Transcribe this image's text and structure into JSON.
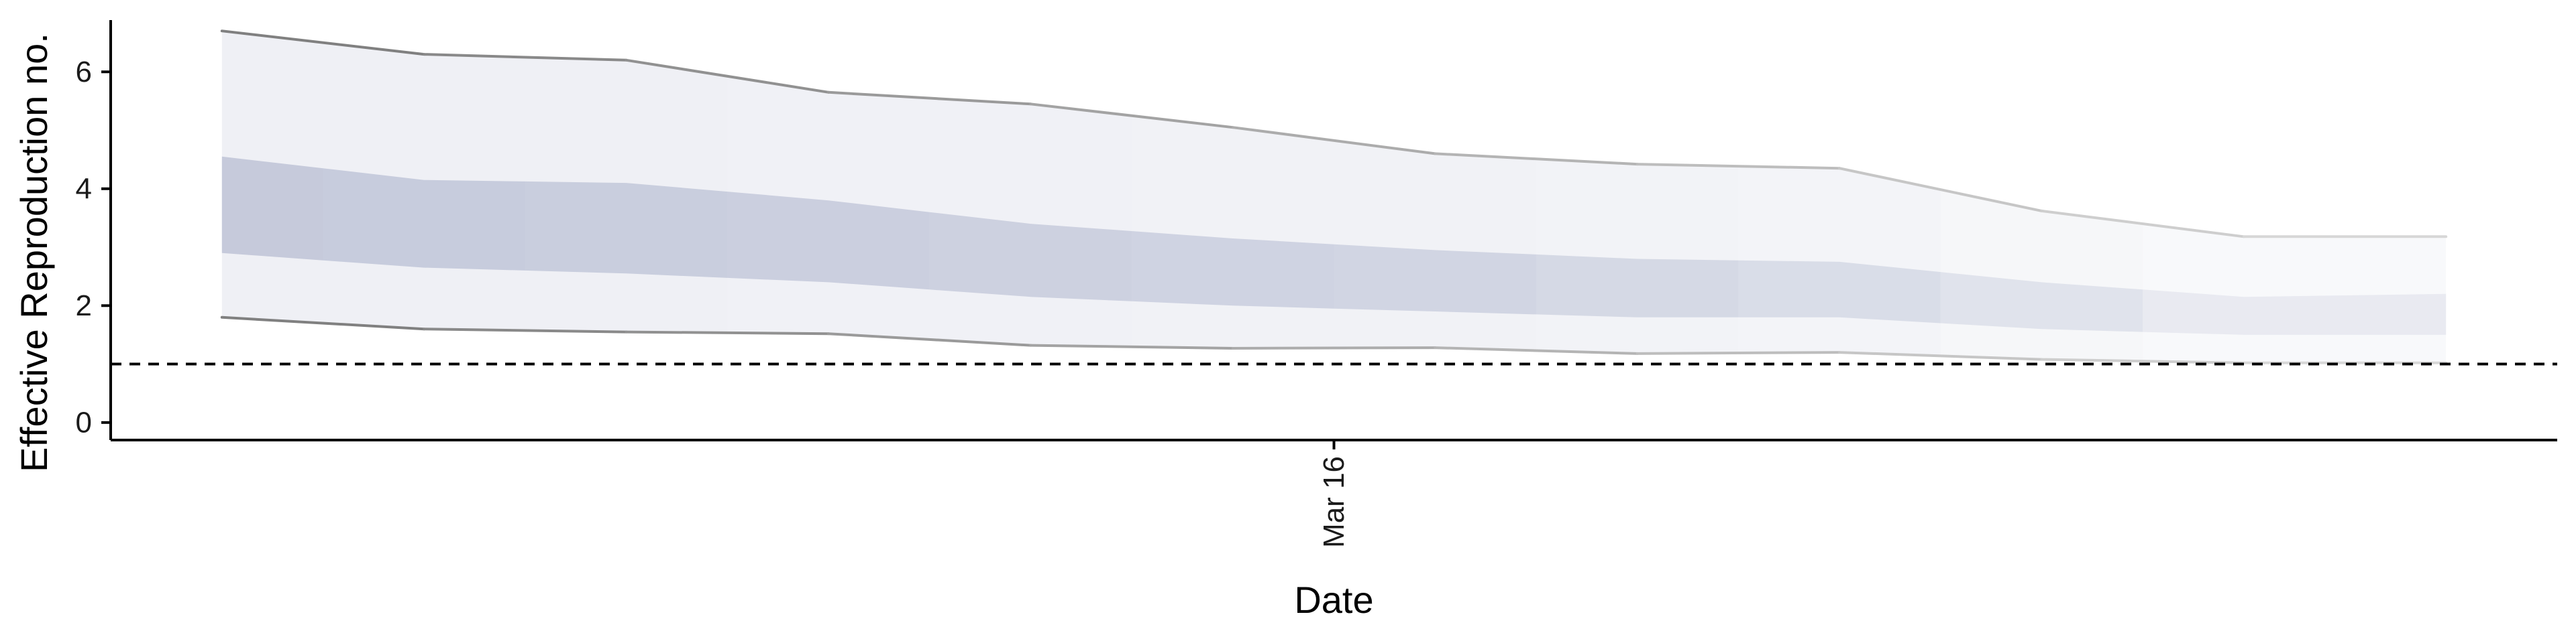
{
  "chart_data": {
    "type": "area",
    "title": "",
    "xlabel": "Date",
    "ylabel": "Effective Reproduction no.",
    "x_tick_labels": [
      "Mar 16"
    ],
    "x_tick_values": [
      5.5
    ],
    "y_ticks": [
      0,
      2,
      4,
      6
    ],
    "ylim": [
      -0.3,
      7.0
    ],
    "xlim": [
      -0.55,
      11.55
    ],
    "grid": false,
    "legend": "none",
    "reference_line": {
      "y": 1,
      "style": "dashed",
      "color": "#000000"
    },
    "band_color": "#8c96b8",
    "x": [
      0,
      1,
      2,
      3,
      4,
      5,
      6,
      7,
      8,
      9,
      10,
      11
    ],
    "series": [
      {
        "name": "",
        "role": "ci90_upper",
        "values": [
          6.7,
          6.3,
          6.2,
          5.65,
          5.45,
          5.05,
          4.6,
          4.42,
          4.35,
          3.62,
          3.18,
          3.18
        ]
      },
      {
        "name": "",
        "role": "ci50_upper",
        "values": [
          4.55,
          4.15,
          4.1,
          3.8,
          3.4,
          3.15,
          2.95,
          2.8,
          2.75,
          2.4,
          2.15,
          2.2
        ]
      },
      {
        "name": "",
        "role": "ci50_lower",
        "values": [
          2.9,
          2.65,
          2.55,
          2.4,
          2.15,
          2.0,
          1.9,
          1.8,
          1.8,
          1.6,
          1.5,
          1.5
        ]
      },
      {
        "name": "",
        "role": "ci90_lower",
        "values": [
          1.8,
          1.6,
          1.55,
          1.52,
          1.32,
          1.27,
          1.28,
          1.18,
          1.2,
          1.08,
          1.02,
          1.02
        ]
      }
    ],
    "band_opacity": {
      "outer": [
        0.14,
        0.14,
        0.14,
        0.13,
        0.13,
        0.12,
        0.12,
        0.11,
        0.1,
        0.08,
        0.06,
        0.06
      ],
      "inner": [
        0.42,
        0.4,
        0.38,
        0.37,
        0.35,
        0.33,
        0.31,
        0.28,
        0.25,
        0.2,
        0.14,
        0.14
      ]
    }
  }
}
